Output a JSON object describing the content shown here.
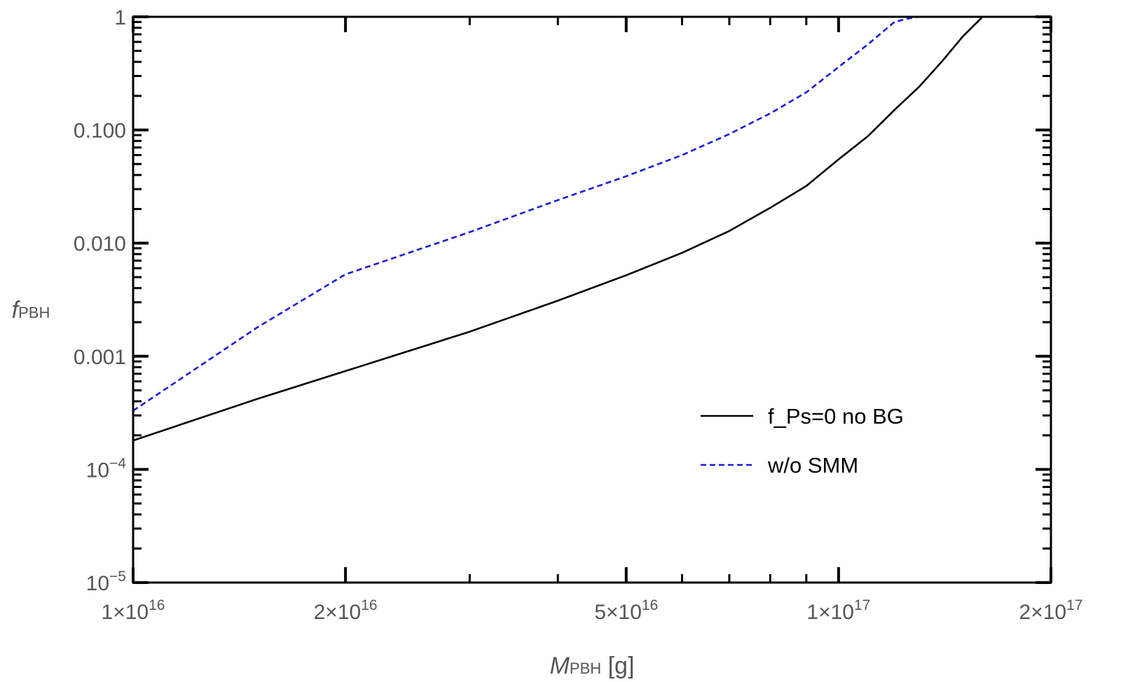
{
  "chart_data": {
    "type": "line",
    "title": "",
    "xlabel": {
      "main": "M",
      "sub": "PBH",
      "suffix": " [g]"
    },
    "ylabel": {
      "main": "f",
      "sub": "PBH"
    },
    "x_scale": "log",
    "y_scale": "log",
    "xlim": [
      1e+16,
      2e+17
    ],
    "ylim": [
      1e-05,
      1
    ],
    "x_ticks": [
      {
        "value": 1e+16,
        "mant": "1",
        "exp": "16"
      },
      {
        "value": 2e+16,
        "mant": "2",
        "exp": "16"
      },
      {
        "value": 5e+16,
        "mant": "5",
        "exp": "16"
      },
      {
        "value": 1e+17,
        "mant": "1",
        "exp": "17"
      },
      {
        "value": 2e+17,
        "mant": "2",
        "exp": "17"
      }
    ],
    "y_ticks": [
      {
        "value": 1,
        "text": "1"
      },
      {
        "value": 0.1,
        "text": "0.100"
      },
      {
        "value": 0.01,
        "text": "0.010"
      },
      {
        "value": 0.001,
        "text": "0.001"
      },
      {
        "value": 0.0001,
        "mant": "10",
        "exp": "−4"
      },
      {
        "value": 1e-05,
        "mant": "10",
        "exp": "−5"
      }
    ],
    "series": [
      {
        "name": "f_Ps=0 no BG",
        "color": "#000000",
        "dash": "solid",
        "x": [
          1e+16,
          1.5e+16,
          2e+16,
          3e+16,
          4e+16,
          5e+16,
          6e+16,
          7e+16,
          8e+16,
          9e+16,
          1e+17,
          1.1e+17,
          1.2e+17,
          1.3e+17,
          1.4e+17,
          1.5e+17,
          1.6e+17
        ],
        "y": [
          0.00018,
          0.00042,
          0.00074,
          0.00165,
          0.0031,
          0.0052,
          0.0082,
          0.0128,
          0.0205,
          0.032,
          0.055,
          0.088,
          0.15,
          0.24,
          0.4,
          0.67,
          1.0
        ]
      },
      {
        "name": "w/o SMM",
        "color": "#1a1ae0",
        "dash": "dashed",
        "x": [
          1e+16,
          1.5e+16,
          2e+16,
          3e+16,
          4e+16,
          5e+16,
          6e+16,
          7e+16,
          8e+16,
          9e+16,
          1e+17,
          1.1e+17,
          1.2e+17,
          1.25e+17,
          1.3e+17,
          1.35e+17
        ],
        "y": [
          0.00033,
          0.0018,
          0.0053,
          0.0125,
          0.024,
          0.039,
          0.06,
          0.092,
          0.14,
          0.215,
          0.36,
          0.57,
          0.9,
          0.96,
          1.0,
          1.0
        ]
      }
    ],
    "legend": {
      "placement": "lower-right",
      "items": [
        "f_Ps=0 no BG",
        "w/o SMM"
      ]
    },
    "grid": false
  }
}
